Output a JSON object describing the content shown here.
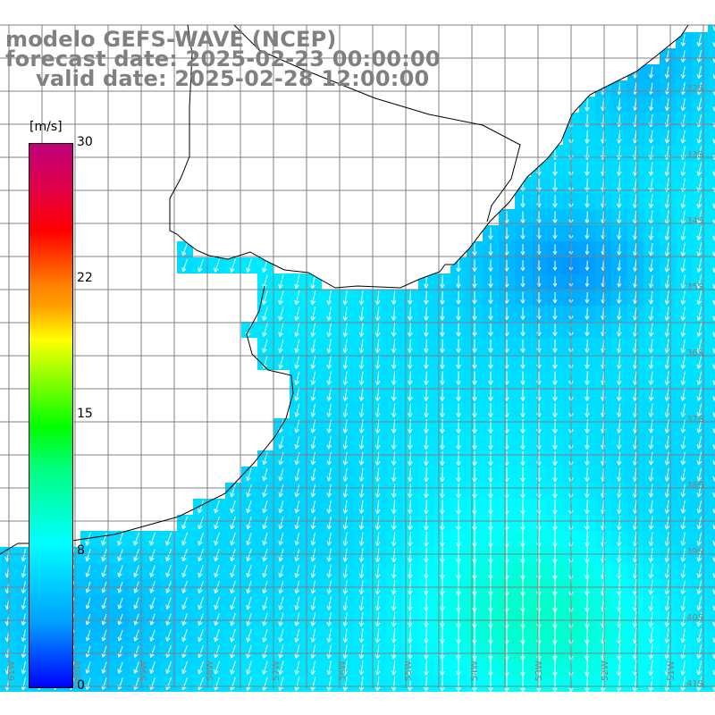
{
  "titles": {
    "line1": "modelo GEFS-WAVE (NCEP)",
    "line2": "forecast date: 2025-02-23 00:00:00",
    "line3": "valid date: 2025-02-28 12:00:00"
  },
  "colorbar": {
    "units": "[m/s]",
    "ticks": [
      "30",
      "22",
      "15",
      "8",
      "0"
    ],
    "range": [
      0,
      30
    ]
  },
  "grid": {
    "lon_labels": [
      "61W",
      "60W",
      "59W",
      "58W",
      "57W",
      "56W",
      "55W",
      "54W",
      "53W",
      "52W",
      "51W"
    ],
    "lat_labels": [
      "32S",
      "33S",
      "34S",
      "35S",
      "36S",
      "37S",
      "38S",
      "39S",
      "40S",
      "41S"
    ]
  },
  "colors": {
    "land": "#ffffff",
    "grid": "#808080",
    "coast": "#000000",
    "arrows": "#ffffff",
    "title_text": "#808080"
  }
}
